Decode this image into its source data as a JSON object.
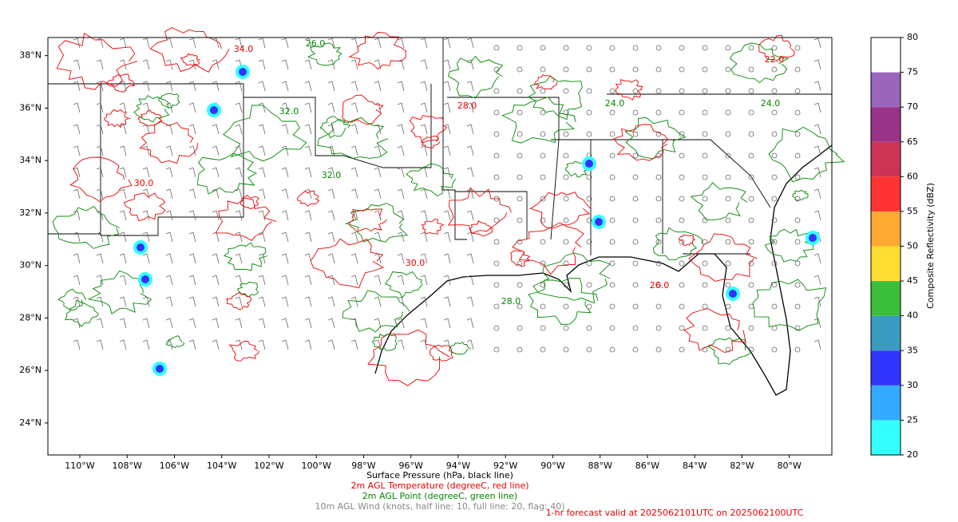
{
  "map": {
    "lat_lim": [
      22.78,
      38.69
    ],
    "lon_lim": [
      -111.35,
      -78.2
    ],
    "lat_ticks": [
      {
        "value": 24,
        "label": "24°N"
      },
      {
        "value": 26,
        "label": "26°N"
      },
      {
        "value": 28,
        "label": "28°N"
      },
      {
        "value": 30,
        "label": "30°N"
      },
      {
        "value": 32,
        "label": "32°N"
      },
      {
        "value": 34,
        "label": "34°N"
      },
      {
        "value": 36,
        "label": "36°N"
      },
      {
        "value": 38,
        "label": "38°N"
      }
    ],
    "lon_ticks": [
      {
        "value": -110,
        "label": "110°W"
      },
      {
        "value": -108,
        "label": "108°W"
      },
      {
        "value": -106,
        "label": "106°W"
      },
      {
        "value": -104,
        "label": "104°W"
      },
      {
        "value": -102,
        "label": "102°W"
      },
      {
        "value": -100,
        "label": "100°W"
      },
      {
        "value": -98,
        "label": "98°W"
      },
      {
        "value": -96,
        "label": "96°W"
      },
      {
        "value": -94,
        "label": "94°W"
      },
      {
        "value": -92,
        "label": "92°W"
      },
      {
        "value": -90,
        "label": "90°W"
      },
      {
        "value": -88,
        "label": "88°W"
      },
      {
        "value": -86,
        "label": "86°W"
      },
      {
        "value": -84,
        "label": "84°W"
      },
      {
        "value": -82,
        "label": "82°W"
      },
      {
        "value": -80,
        "label": "80°W"
      }
    ],
    "contour_labels": [
      "34.0",
      "32.0",
      "30.0",
      "26.0",
      "28.0",
      "24.0",
      "22.0",
      "32.0",
      "30.0",
      "28.0",
      "26.0",
      "24.0"
    ]
  },
  "colorbar": {
    "label": "Composite Reflectivity (dBZ)",
    "lim": [
      20,
      80
    ],
    "ticks": [
      20,
      25,
      30,
      35,
      40,
      45,
      50,
      55,
      60,
      65,
      70,
      75,
      80
    ],
    "colors": [
      "#33ffff",
      "#33aaff",
      "#3333ff",
      "#3a9abf",
      "#3bbf3b",
      "#ffdd33",
      "#ffaa33",
      "#ff3333",
      "#cc3355",
      "#993388",
      "#9966bb",
      "#ffffff"
    ]
  },
  "legend": {
    "lines": [
      "Surface Pressure (hPa, black line)",
      "2m AGL Temperature (degreeC, red line)",
      "2m AGL Point (degreeC, green line)",
      "10m AGL Wind (knots, half line: 10, full line: 20, flag: 40)"
    ]
  },
  "footer": "1-hr forecast valid at 2025062101UTC on 2025062100UTC"
}
